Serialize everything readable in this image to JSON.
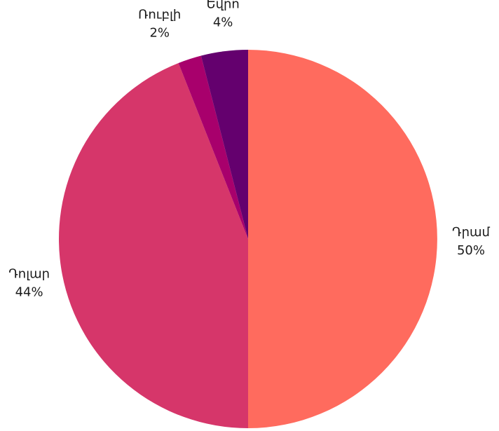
{
  "chart_data": {
    "type": "pie",
    "title": "",
    "slices": [
      {
        "label": "Դրամ",
        "value": 50,
        "value_label": "50%",
        "color": "#ff6b5e"
      },
      {
        "label": "Դոլար",
        "value": 44,
        "value_label": "44%",
        "color": "#d6366a"
      },
      {
        "label": "Ռուբլի",
        "value": 2,
        "value_label": "2%",
        "color": "#a8006c"
      },
      {
        "label": "Եվրո",
        "value": 4,
        "value_label": "4%",
        "color": "#64006e"
      }
    ],
    "start_direction": "12 o'clock",
    "direction": "clockwise",
    "legend": "none"
  }
}
